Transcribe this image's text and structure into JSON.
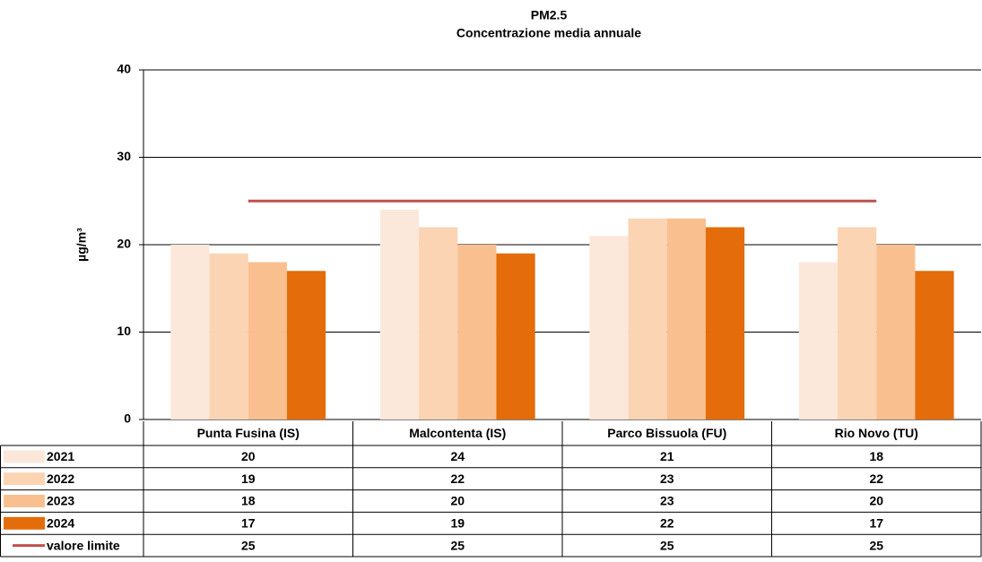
{
  "chart_data": {
    "type": "bar",
    "title": "PM2.5",
    "subtitle": "Concentrazione media annuale",
    "y_label": "µg/m³",
    "categories": [
      "Punta Fusina (IS)",
      "Malcontenta (IS)",
      "Parco Bissuola (FU)",
      "Rio Novo (TU)"
    ],
    "series": [
      {
        "name": "2021",
        "color": "#fce8da",
        "values": [
          20,
          24,
          21,
          18
        ]
      },
      {
        "name": "2022",
        "color": "#fbd4b4",
        "values": [
          19,
          22,
          23,
          22
        ]
      },
      {
        "name": "2023",
        "color": "#f9bf8f",
        "values": [
          18,
          20,
          23,
          20
        ]
      },
      {
        "name": "2024",
        "color": "#e46c0a",
        "values": [
          17,
          19,
          22,
          17
        ]
      },
      {
        "name": "valore limite",
        "color": "#c0504d",
        "type": "line",
        "values": [
          25,
          25,
          25,
          25
        ]
      }
    ],
    "ylim": [
      0,
      40
    ],
    "yticks": [
      0,
      10,
      20,
      30,
      40
    ],
    "grid": true
  }
}
